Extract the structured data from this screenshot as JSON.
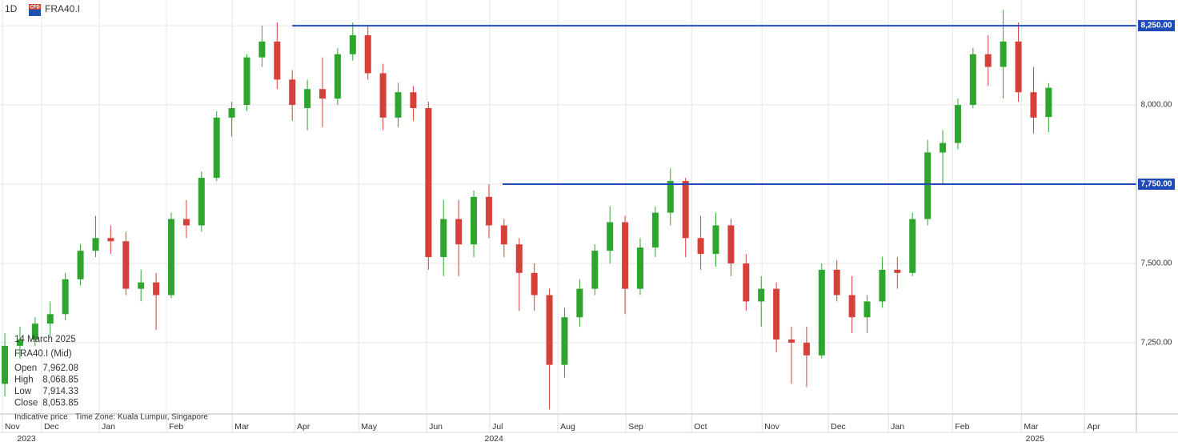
{
  "chart_data": {
    "type": "candlestick",
    "interval": "1D",
    "instrument": "FRA40.I",
    "icon": "CFD",
    "open": [
      7120,
      7240,
      7260,
      7310,
      7340,
      7450,
      7540,
      7580,
      7570,
      7420,
      7440,
      7400,
      7640,
      7620,
      7770,
      7960,
      8000,
      8150,
      8200,
      8080,
      7990,
      8050,
      8020,
      8160,
      8220,
      8100,
      7960,
      8040,
      7990,
      7520,
      7640,
      7560,
      7710,
      7620,
      7560,
      7470,
      7400,
      7180,
      7330,
      7420,
      7540,
      7630,
      7420,
      7550,
      7660,
      7760,
      7580,
      7530,
      7620,
      7500,
      7380,
      7420,
      7260,
      7250,
      7210,
      7480,
      7400,
      7330,
      7380,
      7480,
      7470,
      7640,
      7850,
      7880,
      8000,
      8160,
      8120,
      8200,
      8040,
      7962
    ],
    "high": [
      7280,
      7300,
      7330,
      7380,
      7470,
      7560,
      7650,
      7620,
      7600,
      7480,
      7470,
      7660,
      7700,
      7790,
      7980,
      8010,
      8160,
      8250,
      8260,
      8110,
      8080,
      8150,
      8180,
      8260,
      8250,
      8130,
      8070,
      8060,
      8010,
      7700,
      7700,
      7730,
      7750,
      7640,
      7580,
      7500,
      7420,
      7360,
      7450,
      7560,
      7680,
      7650,
      7580,
      7680,
      7800,
      7770,
      7650,
      7660,
      7640,
      7530,
      7460,
      7440,
      7300,
      7300,
      7500,
      7510,
      7460,
      7400,
      7520,
      7520,
      7660,
      7890,
      7920,
      8020,
      8180,
      8220,
      8300,
      8260,
      8120,
      8069
    ],
    "low": [
      7080,
      7200,
      7240,
      7270,
      7320,
      7430,
      7520,
      7530,
      7400,
      7380,
      7290,
      7390,
      7580,
      7600,
      7760,
      7900,
      7980,
      8120,
      8050,
      7950,
      7920,
      7930,
      8000,
      8140,
      8080,
      7920,
      7930,
      7950,
      7480,
      7460,
      7460,
      7520,
      7580,
      7520,
      7350,
      7350,
      7040,
      7140,
      7300,
      7400,
      7500,
      7340,
      7400,
      7520,
      7620,
      7520,
      7480,
      7490,
      7460,
      7350,
      7300,
      7220,
      7120,
      7110,
      7200,
      7380,
      7280,
      7280,
      7360,
      7420,
      7460,
      7620,
      7750,
      7860,
      7990,
      8060,
      8020,
      8010,
      7910,
      7914
    ],
    "close": [
      7240,
      7260,
      7310,
      7340,
      7450,
      7540,
      7580,
      7570,
      7420,
      7440,
      7400,
      7640,
      7620,
      7770,
      7960,
      7990,
      8150,
      8200,
      8080,
      8000,
      8050,
      8020,
      8160,
      8220,
      8100,
      7960,
      8040,
      7990,
      7520,
      7640,
      7560,
      7710,
      7620,
      7560,
      7470,
      7400,
      7180,
      7330,
      7420,
      7540,
      7630,
      7420,
      7550,
      7660,
      7760,
      7580,
      7530,
      7620,
      7500,
      7380,
      7420,
      7260,
      7250,
      7210,
      7480,
      7400,
      7330,
      7380,
      7480,
      7470,
      7640,
      7850,
      7880,
      8000,
      8160,
      8120,
      8200,
      8040,
      7960,
      8054
    ],
    "up_color": "#2ea62e",
    "down_color": "#d6403a",
    "xlim": [
      -0.32,
      74.8
    ],
    "xticks": [
      {
        "value": -0.16,
        "label": "Nov"
      },
      {
        "value": 2.43,
        "label": "Dec"
      },
      {
        "value": 6.24,
        "label": "Jan"
      },
      {
        "value": 10.69,
        "label": "Feb"
      },
      {
        "value": 15.03,
        "label": "Mar"
      },
      {
        "value": 19.15,
        "label": "Apr"
      },
      {
        "value": 23.39,
        "label": "May"
      },
      {
        "value": 27.88,
        "label": "Jun"
      },
      {
        "value": 32.06,
        "label": "Jul"
      },
      {
        "value": 36.56,
        "label": "Aug"
      },
      {
        "value": 41.06,
        "label": "Sep"
      },
      {
        "value": 45.4,
        "label": "Oct"
      },
      {
        "value": 50.05,
        "label": "Nov"
      },
      {
        "value": 54.44,
        "label": "Dec"
      },
      {
        "value": 58.41,
        "label": "Jan"
      },
      {
        "value": 62.65,
        "label": "Feb"
      },
      {
        "value": 67.2,
        "label": "Mar"
      },
      {
        "value": 71.38,
        "label": "Apr"
      }
    ],
    "years": [
      {
        "value": 1.43,
        "label": "2023"
      },
      {
        "value": 32.33,
        "label": "2024"
      },
      {
        "value": 68.1,
        "label": "2025"
      }
    ],
    "ylim": [
      7025,
      8331
    ],
    "yticks": [
      {
        "value": 7250,
        "label": "7,250.00"
      },
      {
        "value": 7500,
        "label": "7,500.00"
      },
      {
        "value": 7750,
        "label": "7,750.00"
      },
      {
        "value": 8000,
        "label": "8,000.00"
      },
      {
        "value": 8250,
        "label": "8,250.00"
      }
    ],
    "grid": true,
    "hlines": [
      {
        "value": 8250,
        "start": 19.0
      },
      {
        "value": 7750,
        "start": 32.9
      }
    ],
    "hline_color": "#1f4bb8",
    "readout": {
      "date": "14 March 2025",
      "instrument": "FRA40.I (Mid)",
      "rows": [
        {
          "label": "Open",
          "value": "7,962.08"
        },
        {
          "label": "High",
          "value": "8,068.85"
        },
        {
          "label": "Low",
          "value": "7,914.33"
        },
        {
          "label": "Close",
          "value": "8,053.85"
        }
      ],
      "note": "Indicative price",
      "timezone": "Time Zone: Kuala Lumpur, Singapore"
    }
  }
}
